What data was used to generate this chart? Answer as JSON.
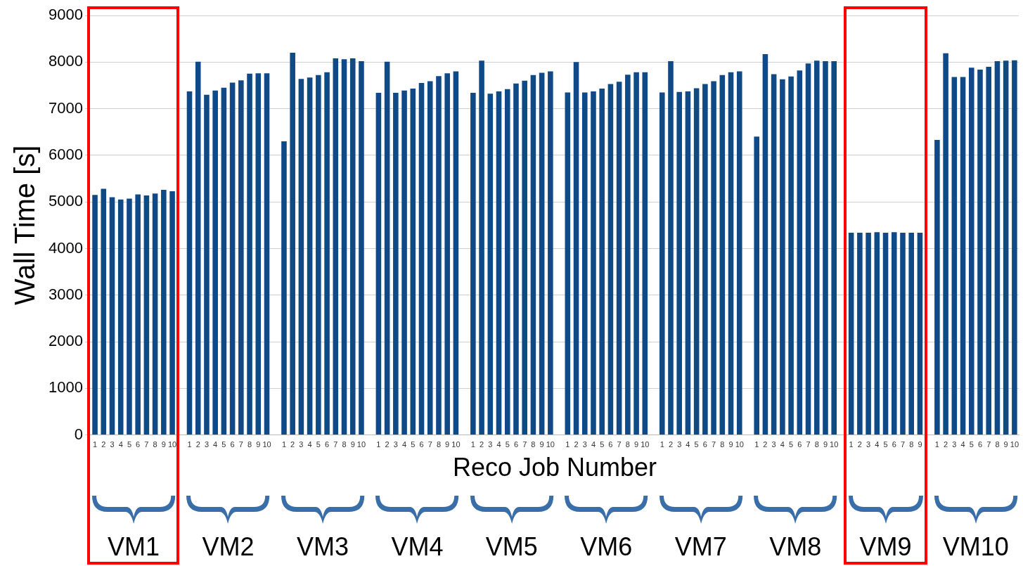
{
  "chart_data": {
    "type": "bar",
    "xlabel": "Reco Job Number",
    "ylabel": "Wall Time [s]",
    "color": "#104a86",
    "categories": [
      "1",
      "2",
      "3",
      "4",
      "5",
      "6",
      "7",
      "8",
      "9",
      "10",
      null,
      "1",
      "2",
      "3",
      "4",
      "5",
      "6",
      "7",
      "8",
      "9",
      "10",
      null,
      "1",
      "2",
      "3",
      "4",
      "5",
      "6",
      "7",
      "8",
      "9",
      "10",
      null,
      "1",
      "2",
      "3",
      "4",
      "5",
      "6",
      "7",
      "8",
      "9",
      "10",
      null,
      "1",
      "2",
      "3",
      "4",
      "5",
      "6",
      "7",
      "8",
      "9",
      "10",
      null,
      "1",
      "2",
      "3",
      "4",
      "5",
      "6",
      "7",
      "8",
      "9",
      "10",
      null,
      "1",
      "2",
      "3",
      "4",
      "5",
      "6",
      "7",
      "8",
      "9",
      "10",
      null,
      "1",
      "2",
      "3",
      "4",
      "5",
      "6",
      "7",
      "8",
      "9",
      "10",
      null,
      "1",
      "2",
      "3",
      "4",
      "5",
      "6",
      "7",
      "8",
      "9",
      null,
      "1",
      "2",
      "3",
      "4",
      "5",
      "6",
      "7",
      "8",
      "9",
      "10"
    ],
    "values": [
      5150,
      5280,
      5100,
      5050,
      5070,
      5160,
      5140,
      5180,
      5260,
      5230,
      null,
      7370,
      8010,
      7300,
      7390,
      7450,
      7560,
      7610,
      7750,
      7760,
      7760,
      null,
      6300,
      8200,
      7640,
      7670,
      7720,
      7780,
      8080,
      8060,
      8080,
      8020,
      null,
      7340,
      8010,
      7340,
      7390,
      7430,
      7550,
      7590,
      7700,
      7760,
      7800,
      null,
      7340,
      8030,
      7320,
      7370,
      7420,
      7540,
      7600,
      7720,
      7770,
      7800,
      null,
      7350,
      8000,
      7350,
      7370,
      7430,
      7530,
      7580,
      7730,
      7780,
      7780,
      null,
      7350,
      8020,
      7360,
      7370,
      7440,
      7530,
      7590,
      7720,
      7780,
      7800,
      null,
      6400,
      8170,
      7740,
      7630,
      7690,
      7820,
      7970,
      8030,
      8020,
      8020,
      null,
      4340,
      4340,
      4340,
      4350,
      4340,
      4350,
      4340,
      4340,
      4340,
      null,
      6330,
      8190,
      7680,
      7680,
      7880,
      7840,
      7900,
      8020,
      8030,
      8040
    ],
    "ylim": [
      0,
      9000
    ],
    "yticks": [
      0,
      1000,
      2000,
      3000,
      4000,
      5000,
      6000,
      7000,
      8000,
      9000
    ],
    "grid": "y",
    "legend": false,
    "annotations": [
      "VM1",
      "VM2",
      "VM3",
      "VM4",
      "VM5",
      "VM6",
      "VM7",
      "VM8",
      "VM9",
      "VM10"
    ]
  }
}
